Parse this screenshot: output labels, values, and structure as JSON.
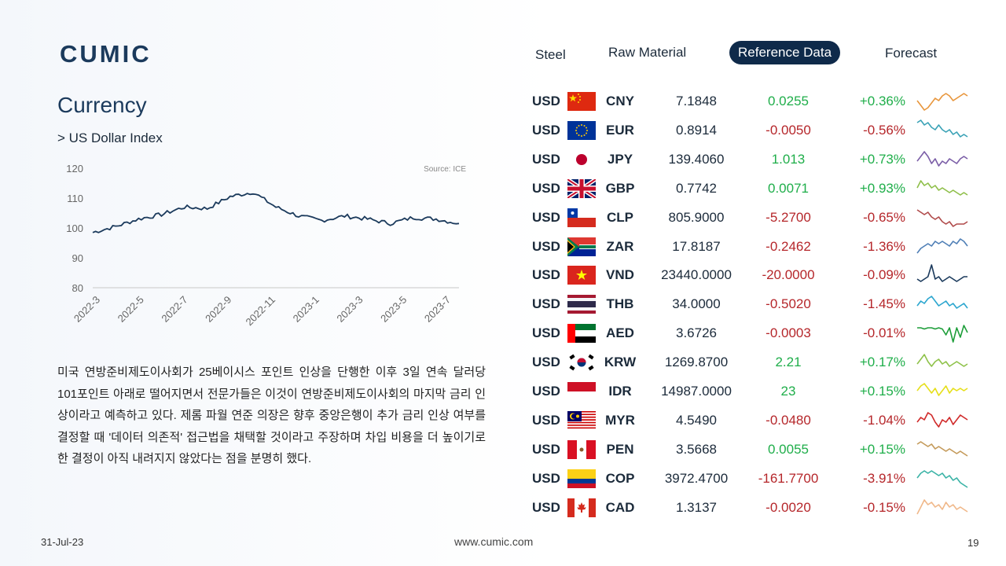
{
  "brand": {
    "logo_text": "CUMIC"
  },
  "nav": {
    "items": [
      {
        "label": "Steel",
        "active": false
      },
      {
        "label": "Raw Material",
        "active": false
      },
      {
        "label": "Reference Data",
        "active": true
      },
      {
        "label": "Forecast",
        "active": false
      }
    ]
  },
  "page": {
    "title": "Currency",
    "subtitle": "> US Dollar Index",
    "paragraph": "미국 연방준비제도이사회가 25베이시스 포인트 인상을 단행한 이후 3일 연속 달러당 101포인트 아래로 떨어지면서 전문가들은 이것이 연방준비제도이사회의 마지막 금리 인상이라고 예측하고 있다. 제롬 파월 연준 의장은 향후 중앙은행이 추가 금리 인상 여부를 결정할 때 '데이터 의존적' 접근법을 채택할 것이라고 주장하며 차입 비용을 더 높이기로 한 결정이 아직 내려지지 않았다는 점을 분명히 했다."
  },
  "footer": {
    "date": "31-Jul-23",
    "url": "www.cumic.com",
    "page_number": "19"
  },
  "chart_data": {
    "type": "line",
    "title": "",
    "source": "Source: ICE",
    "xlabel": "",
    "ylabel": "",
    "ylim": [
      80,
      120
    ],
    "yticks": [
      80,
      90,
      100,
      110,
      120
    ],
    "xticks": [
      "2022-3",
      "2022-5",
      "2022-7",
      "2022-9",
      "2022-11",
      "2023-1",
      "2023-3",
      "2023-5",
      "2023-7"
    ],
    "grid": false,
    "color": "#1b3a5c",
    "series": [
      {
        "name": "",
        "x": [
          "2022-3",
          "2022-4",
          "2022-5",
          "2022-6",
          "2022-7",
          "2022-8",
          "2022-9",
          "2022-10",
          "2022-11",
          "2022-12",
          "2023-1",
          "2023-2",
          "2023-3",
          "2023-4",
          "2023-5",
          "2023-6",
          "2023-7"
        ],
        "values": [
          98.5,
          100.5,
          103.0,
          104.5,
          107.0,
          106.5,
          110.5,
          112.0,
          107.0,
          104.0,
          102.5,
          104.0,
          103.0,
          101.5,
          103.5,
          103.0,
          101.5
        ]
      }
    ]
  },
  "currencies": [
    {
      "base": "USD",
      "code": "CNY",
      "flag": "cn",
      "rate": "7.1848",
      "change": "0.0255",
      "pct": "+0.36%",
      "dir": "pos",
      "spark_color": "#e8963c",
      "spark": [
        0.5,
        0.7,
        0.9,
        0.8,
        0.6,
        0.4,
        0.5,
        0.3,
        0.2,
        0.3,
        0.5,
        0.4,
        0.3,
        0.2,
        0.3
      ]
    },
    {
      "base": "USD",
      "code": "EUR",
      "flag": "eu",
      "rate": "0.8914",
      "change": "-0.0050",
      "pct": "-0.56%",
      "dir": "neg",
      "spark_color": "#3aa2b6",
      "spark": [
        0.2,
        0.1,
        0.3,
        0.2,
        0.4,
        0.5,
        0.3,
        0.5,
        0.6,
        0.5,
        0.7,
        0.6,
        0.8,
        0.7,
        0.8
      ]
    },
    {
      "base": "USD",
      "code": "JPY",
      "flag": "jp",
      "rate": "139.4060",
      "change": "1.013",
      "pct": "+0.73%",
      "dir": "pos",
      "spark_color": "#7b5ea7",
      "spark": [
        0.6,
        0.4,
        0.2,
        0.4,
        0.7,
        0.5,
        0.8,
        0.6,
        0.7,
        0.5,
        0.6,
        0.7,
        0.5,
        0.4,
        0.5
      ]
    },
    {
      "base": "USD",
      "code": "GBP",
      "flag": "gb",
      "rate": "0.7742",
      "change": "0.0071",
      "pct": "+0.93%",
      "dir": "pos",
      "spark_color": "#8fbf4a",
      "spark": [
        0.5,
        0.2,
        0.4,
        0.3,
        0.5,
        0.4,
        0.6,
        0.5,
        0.6,
        0.7,
        0.6,
        0.7,
        0.8,
        0.7,
        0.8
      ]
    },
    {
      "base": "USD",
      "code": "CLP",
      "flag": "cl",
      "rate": "805.9000",
      "change": "-5.2700",
      "pct": "-0.65%",
      "dir": "neg",
      "spark_color": "#b04a4a",
      "spark": [
        0.2,
        0.3,
        0.4,
        0.3,
        0.5,
        0.6,
        0.5,
        0.7,
        0.8,
        0.7,
        0.9,
        0.8,
        0.8,
        0.8,
        0.7
      ]
    },
    {
      "base": "USD",
      "code": "ZAR",
      "flag": "za",
      "rate": "17.8187",
      "change": "-0.2462",
      "pct": "-1.36%",
      "dir": "neg",
      "spark_color": "#4f7fb6",
      "spark": [
        0.8,
        0.6,
        0.5,
        0.4,
        0.5,
        0.3,
        0.4,
        0.3,
        0.4,
        0.5,
        0.3,
        0.4,
        0.2,
        0.3,
        0.5
      ]
    },
    {
      "base": "USD",
      "code": "VND",
      "flag": "vn",
      "rate": "23440.0000",
      "change": "-20.0000",
      "pct": "-0.09%",
      "dir": "neg",
      "spark_color": "#1b3a5c",
      "spark": [
        0.7,
        0.8,
        0.7,
        0.6,
        0.1,
        0.7,
        0.6,
        0.8,
        0.7,
        0.6,
        0.7,
        0.8,
        0.7,
        0.6,
        0.6
      ]
    },
    {
      "base": "USD",
      "code": "THB",
      "flag": "th",
      "rate": "34.0000",
      "change": "-0.5020",
      "pct": "-1.45%",
      "dir": "neg",
      "spark_color": "#2ba6cf",
      "spark": [
        0.6,
        0.4,
        0.5,
        0.3,
        0.2,
        0.4,
        0.6,
        0.5,
        0.4,
        0.6,
        0.5,
        0.7,
        0.6,
        0.5,
        0.7
      ]
    },
    {
      "base": "USD",
      "code": "AED",
      "flag": "ae",
      "rate": "3.6726",
      "change": "-0.0003",
      "pct": "-0.01%",
      "dir": "neg",
      "spark_color": "#1e9e3a",
      "spark": [
        0.3,
        0.3,
        0.35,
        0.3,
        0.3,
        0.35,
        0.3,
        0.35,
        0.6,
        0.3,
        0.9,
        0.3,
        0.7,
        0.2,
        0.5
      ]
    },
    {
      "base": "USD",
      "code": "KRW",
      "flag": "kr",
      "rate": "1269.8700",
      "change": "2.21",
      "pct": "+0.17%",
      "dir": "pos",
      "spark_color": "#8fc24a",
      "spark": [
        0.6,
        0.4,
        0.2,
        0.5,
        0.7,
        0.5,
        0.4,
        0.6,
        0.5,
        0.7,
        0.6,
        0.5,
        0.6,
        0.7,
        0.6
      ]
    },
    {
      "base": "USD",
      "code": "IDR",
      "flag": "id",
      "rate": "14987.0000",
      "change": "23",
      "pct": "+0.15%",
      "dir": "pos",
      "spark_color": "#e6df1a",
      "spark": [
        0.5,
        0.3,
        0.2,
        0.4,
        0.6,
        0.4,
        0.7,
        0.5,
        0.3,
        0.6,
        0.4,
        0.5,
        0.4,
        0.5,
        0.4
      ]
    },
    {
      "base": "USD",
      "code": "MYR",
      "flag": "my",
      "rate": "4.5490",
      "change": "-0.0480",
      "pct": "-1.04%",
      "dir": "neg",
      "spark_color": "#d02a2a",
      "spark": [
        0.6,
        0.4,
        0.5,
        0.2,
        0.3,
        0.6,
        0.8,
        0.5,
        0.6,
        0.4,
        0.7,
        0.5,
        0.3,
        0.4,
        0.5
      ]
    },
    {
      "base": "USD",
      "code": "PEN",
      "flag": "pe",
      "rate": "3.5668",
      "change": "0.0055",
      "pct": "+0.15%",
      "dir": "pos",
      "spark_color": "#c49a5a",
      "spark": [
        0.3,
        0.2,
        0.3,
        0.4,
        0.3,
        0.5,
        0.4,
        0.5,
        0.6,
        0.5,
        0.6,
        0.7,
        0.6,
        0.7,
        0.8
      ]
    },
    {
      "base": "USD",
      "code": "COP",
      "flag": "co",
      "rate": "3972.4700",
      "change": "-161.7700",
      "pct": "-3.91%",
      "dir": "neg",
      "spark_color": "#3ab3a6",
      "spark": [
        0.5,
        0.3,
        0.2,
        0.3,
        0.2,
        0.3,
        0.4,
        0.3,
        0.5,
        0.4,
        0.6,
        0.5,
        0.7,
        0.8,
        0.9
      ]
    },
    {
      "base": "USD",
      "code": "CAD",
      "flag": "ca",
      "rate": "1.3137",
      "change": "-0.0020",
      "pct": "-0.15%",
      "dir": "neg",
      "spark_color": "#f0b88a",
      "spark": [
        0.8,
        0.5,
        0.2,
        0.4,
        0.3,
        0.5,
        0.4,
        0.6,
        0.3,
        0.5,
        0.4,
        0.6,
        0.5,
        0.6,
        0.7
      ]
    }
  ]
}
